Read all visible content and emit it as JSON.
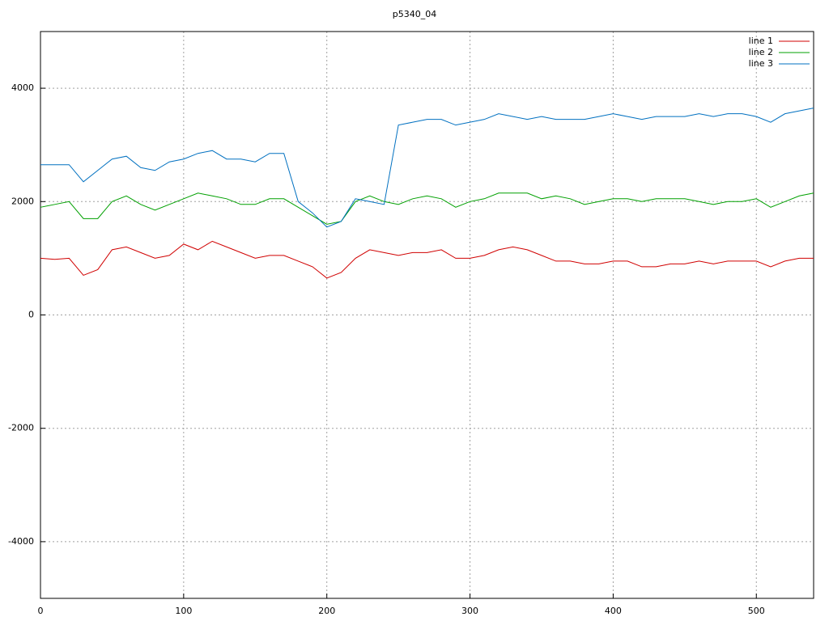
{
  "chart_data": {
    "type": "line",
    "title": "p5340_04",
    "x": [
      0,
      10,
      20,
      30,
      40,
      50,
      60,
      70,
      80,
      90,
      100,
      110,
      120,
      130,
      140,
      150,
      160,
      170,
      180,
      190,
      200,
      210,
      220,
      230,
      240,
      250,
      260,
      270,
      280,
      290,
      300,
      310,
      320,
      330,
      340,
      350,
      360,
      370,
      380,
      390,
      400,
      410,
      420,
      430,
      440,
      450,
      460,
      470,
      480,
      490,
      500,
      510,
      520,
      530,
      540
    ],
    "series": [
      {
        "name": "line 1",
        "color": "#d00000",
        "values": [
          1000,
          980,
          1000,
          700,
          800,
          1150,
          1200,
          1100,
          1000,
          1050,
          1250,
          1150,
          1300,
          1200,
          1100,
          1000,
          1050,
          1050,
          950,
          850,
          650,
          750,
          1000,
          1150,
          1100,
          1050,
          1100,
          1100,
          1150,
          1000,
          1000,
          1050,
          1150,
          1200,
          1150,
          1050,
          950,
          950,
          900,
          900,
          950,
          950,
          850,
          850,
          900,
          900,
          950,
          900,
          950,
          950,
          950,
          850,
          950,
          1000,
          1000
        ]
      },
      {
        "name": "line 2",
        "color": "#00a000",
        "values": [
          1900,
          1950,
          2000,
          1700,
          1700,
          2000,
          2100,
          1950,
          1850,
          1950,
          2050,
          2150,
          2100,
          2050,
          1950,
          1950,
          2050,
          2050,
          1900,
          1750,
          1600,
          1650,
          2000,
          2100,
          2000,
          1950,
          2050,
          2100,
          2050,
          1900,
          2000,
          2050,
          2150,
          2150,
          2150,
          2050,
          2100,
          2050,
          1950,
          2000,
          2050,
          2050,
          2000,
          2050,
          2050,
          2050,
          2000,
          1950,
          2000,
          2000,
          2050,
          1900,
          2000,
          2100,
          2150
        ]
      },
      {
        "name": "line 3",
        "color": "#0070c0",
        "values": [
          2650,
          2650,
          2650,
          2350,
          2550,
          2750,
          2800,
          2600,
          2550,
          2700,
          2750,
          2850,
          2900,
          2750,
          2750,
          2700,
          2850,
          2850,
          2000,
          1800,
          1550,
          1650,
          2050,
          2000,
          1950,
          3350,
          3400,
          3450,
          3450,
          3350,
          3400,
          3450,
          3550,
          3500,
          3450,
          3500,
          3450,
          3450,
          3450,
          3500,
          3550,
          3500,
          3450,
          3500,
          3500,
          3500,
          3550,
          3500,
          3550,
          3550,
          3500,
          3400,
          3550,
          3600,
          3650
        ]
      }
    ],
    "xlim": [
      0,
      540
    ],
    "xticks": [
      0,
      100,
      200,
      300,
      400,
      500
    ],
    "ylim": [
      -5000,
      5000
    ],
    "yticks": [
      -4000,
      -2000,
      0,
      2000,
      4000
    ],
    "grid": true,
    "legend": "top-right"
  }
}
